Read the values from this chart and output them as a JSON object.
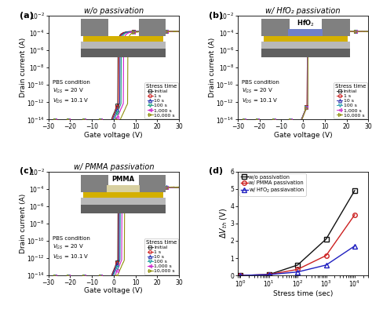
{
  "panel_titles": [
    "w/o passivation",
    "w/ HfO₂ passivation",
    "w/ PMMA passivation",
    ""
  ],
  "panel_labels": [
    "(a)",
    "(b)",
    "(c)",
    "(d)"
  ],
  "xlabel_transfer": "Gate voltage (V)",
  "ylabel_transfer": "Drain current (A)",
  "xlabel_d": "Stress time (sec)",
  "ylabel_d": "ΔVₜ˰ (V)",
  "stress_labels": [
    "Initial",
    "1 s",
    "10 s",
    "100 s",
    "1,000 s",
    "10,000 s"
  ],
  "stress_colors_a": [
    "#333333",
    "#cc2020",
    "#2030b0",
    "#20a080",
    "#cc20cc",
    "#909010"
  ],
  "stress_colors_b": [
    "#333333",
    "#cc2020",
    "#3030b0",
    "#30a0b0",
    "#cc30cc",
    "#909010"
  ],
  "stress_colors_c": [
    "#333333",
    "#cc2020",
    "#2030b0",
    "#20a0a0",
    "#cc20cc",
    "#909010"
  ],
  "legend_d_colors": [
    "#111111",
    "#cc2020",
    "#2020c0"
  ],
  "vth_shifts_a": [
    0,
    0.3,
    0.8,
    1.5,
    2.5,
    4.5
  ],
  "vth_shifts_b": [
    0,
    0.0,
    0.05,
    0.1,
    0.15,
    0.2
  ],
  "vth_shifts_c": [
    0,
    0.2,
    0.5,
    1.0,
    1.8,
    3.0
  ],
  "vth_d_wo": [
    0.0,
    0.05,
    0.6,
    2.1,
    4.9
  ],
  "vth_d_pmma": [
    0.0,
    0.05,
    0.35,
    1.15,
    3.5
  ],
  "vth_d_hfo2": [
    0.0,
    0.05,
    0.2,
    0.6,
    1.7
  ],
  "stress_times_d": [
    1,
    10,
    100,
    1000,
    10000
  ],
  "ylim_d": [
    0,
    6
  ]
}
